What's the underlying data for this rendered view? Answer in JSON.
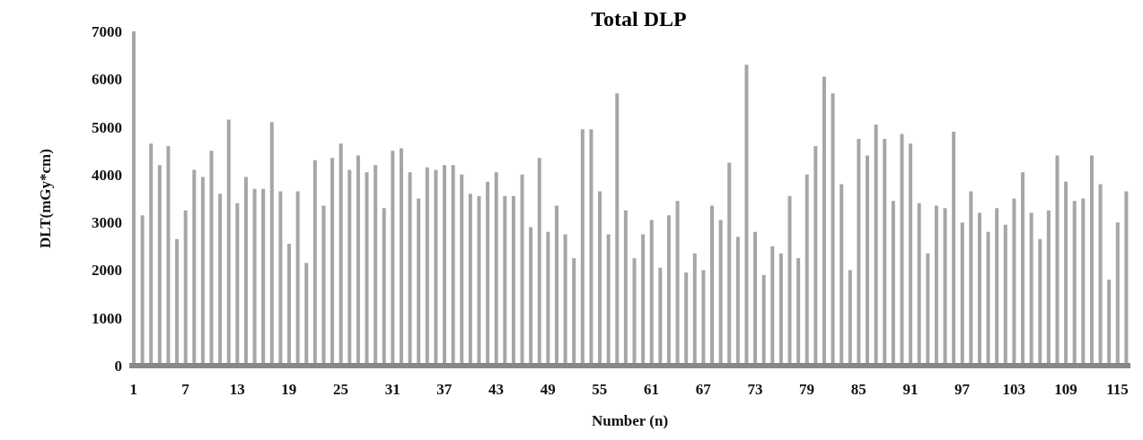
{
  "chart_data": {
    "type": "bar",
    "title": "Total DLP",
    "xlabel": "Number (n)",
    "ylabel": "DLT(mGy*cm)",
    "categories": [
      "1",
      null,
      null,
      null,
      null,
      null,
      "7",
      null,
      null,
      null,
      null,
      null,
      "13",
      null,
      null,
      null,
      null,
      null,
      "19",
      null,
      null,
      null,
      null,
      null,
      "25",
      null,
      null,
      null,
      null,
      null,
      "31",
      null,
      null,
      null,
      null,
      null,
      "37",
      null,
      null,
      null,
      null,
      null,
      "43",
      null,
      null,
      null,
      null,
      null,
      "49",
      null,
      null,
      null,
      null,
      null,
      "55",
      null,
      null,
      null,
      null,
      null,
      "61",
      null,
      null,
      null,
      null,
      null,
      "67",
      null,
      null,
      null,
      null,
      null,
      "73",
      null,
      null,
      null,
      null,
      null,
      "79",
      null,
      null,
      null,
      null,
      null,
      "85",
      null,
      null,
      null,
      null,
      null,
      "91",
      null,
      null,
      null,
      null,
      null,
      "97",
      null,
      null,
      null,
      null,
      null,
      "103",
      null,
      null,
      null,
      null,
      null,
      "109",
      null,
      null,
      null,
      null,
      null,
      "115",
      null
    ],
    "values": [
      7000,
      3150,
      4650,
      4200,
      4600,
      2650,
      3250,
      4100,
      3950,
      4500,
      3600,
      5150,
      3400,
      3950,
      3700,
      3700,
      5100,
      3650,
      2550,
      3650,
      2150,
      4300,
      3350,
      4350,
      4650,
      4100,
      4400,
      4050,
      4200,
      3300,
      4500,
      4550,
      4050,
      3500,
      4150,
      4100,
      4200,
      4200,
      4000,
      3600,
      3550,
      3850,
      4050,
      3550,
      3550,
      4000,
      2900,
      4350,
      2800,
      3350,
      2750,
      2250,
      4950,
      4950,
      3650,
      2750,
      5700,
      3250,
      2250,
      2750,
      3050,
      2050,
      3150,
      3450,
      1950,
      2350,
      2000,
      3350,
      3050,
      4250,
      2700,
      6300,
      2800,
      1900,
      2500,
      2350,
      3550,
      2250,
      4000,
      4600,
      6050,
      5700,
      3800,
      2000,
      4750,
      4400,
      5050,
      4750,
      3450,
      4850,
      4650,
      3400,
      2350,
      3350,
      3300,
      4900,
      3000,
      3650,
      3200,
      2800,
      3300,
      2950,
      3500,
      4050,
      3200,
      2650,
      3250,
      4400,
      3850,
      3450,
      3500,
      4400,
      3800,
      1800,
      3000,
      3650
    ],
    "color": "#a6a6a6",
    "ylim": [
      0,
      7000
    ],
    "yticks": [
      0,
      1000,
      2000,
      3000,
      4000,
      5000,
      6000,
      7000
    ],
    "grid": false,
    "legend": false
  }
}
